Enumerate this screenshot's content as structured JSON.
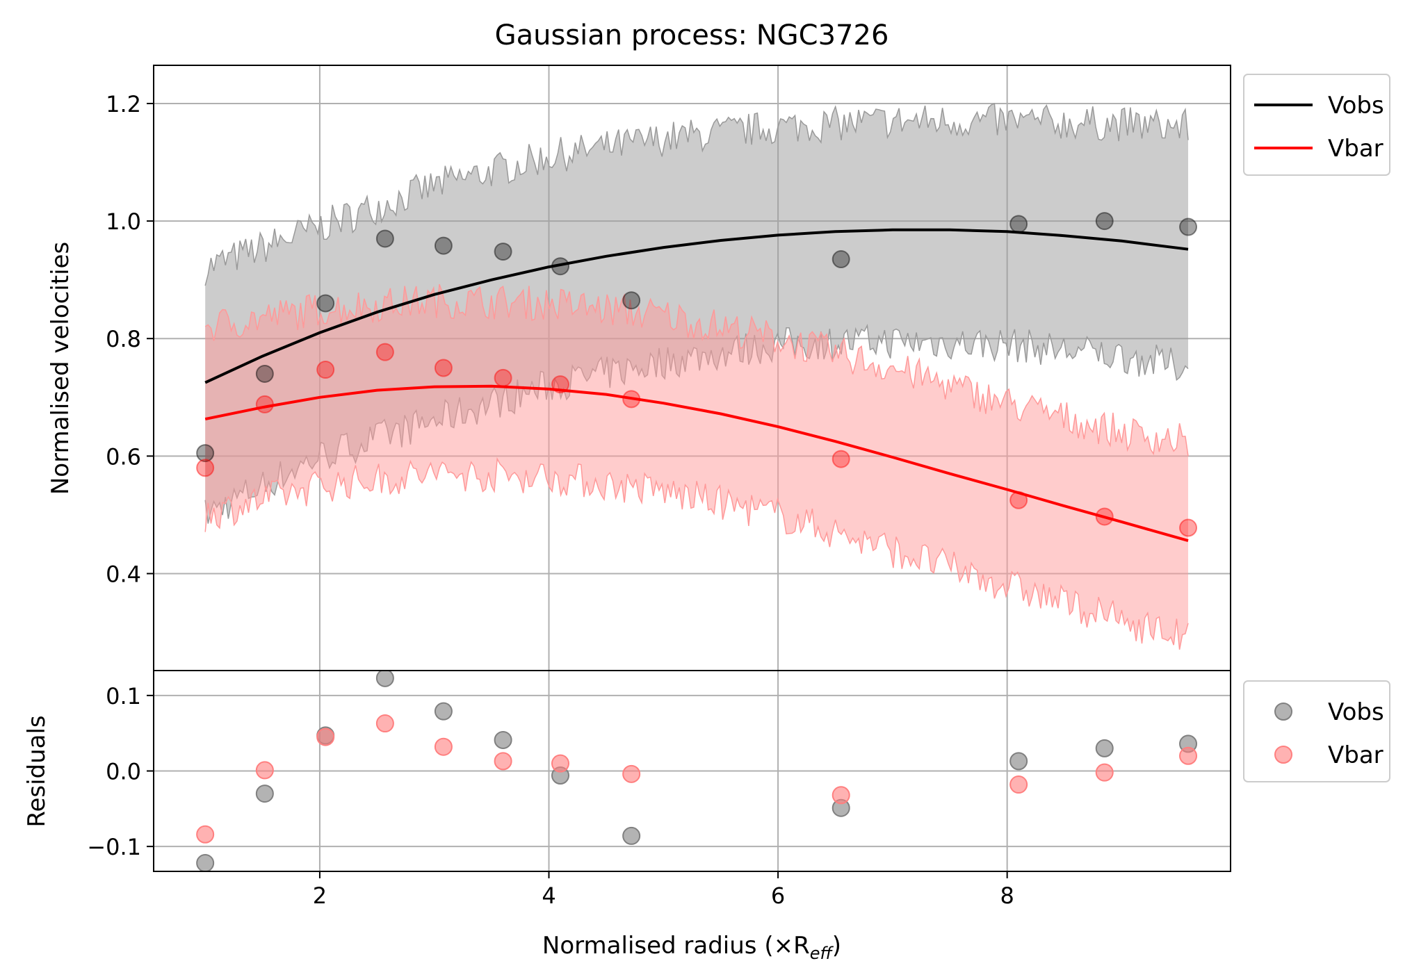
{
  "chart_data": [
    {
      "type": "line",
      "title": "Gaussian process: NGC3726",
      "xlabel": "",
      "ylabel": "Normalised velocities",
      "xlim": [
        0.55,
        9.95
      ],
      "ylim": [
        0.235,
        1.265
      ],
      "x_ticks": [
        2,
        4,
        6,
        8
      ],
      "y_ticks": [
        0.4,
        0.6,
        0.8,
        1.0,
        1.2
      ],
      "y_tick_labels": [
        "0.4",
        "0.6",
        "0.8",
        "1.0",
        "1.2"
      ],
      "grid": true,
      "legend": {
        "placement": "outside-right-top",
        "entries": [
          "Vobs",
          "Vbar"
        ]
      },
      "x": [
        1.0,
        1.52,
        2.05,
        2.57,
        3.08,
        3.6,
        4.1,
        4.72,
        6.55,
        8.1,
        8.85,
        9.58
      ],
      "series": [
        {
          "name": "Vobs",
          "color": "#000000",
          "band_color": "#999999",
          "points": [
            0.605,
            0.74,
            0.86,
            0.97,
            0.958,
            0.948,
            0.923,
            0.865,
            0.935,
            0.995,
            1.0,
            0.99
          ],
          "fit": [
            {
              "x": 1.0,
              "y": 0.725
            },
            {
              "x": 1.5,
              "y": 0.77
            },
            {
              "x": 2.0,
              "y": 0.81
            },
            {
              "x": 2.5,
              "y": 0.845
            },
            {
              "x": 3.0,
              "y": 0.875
            },
            {
              "x": 3.5,
              "y": 0.9
            },
            {
              "x": 4.0,
              "y": 0.922
            },
            {
              "x": 4.5,
              "y": 0.94
            },
            {
              "x": 5.0,
              "y": 0.955
            },
            {
              "x": 5.5,
              "y": 0.967
            },
            {
              "x": 6.0,
              "y": 0.976
            },
            {
              "x": 6.5,
              "y": 0.982
            },
            {
              "x": 7.0,
              "y": 0.985
            },
            {
              "x": 7.5,
              "y": 0.985
            },
            {
              "x": 8.0,
              "y": 0.982
            },
            {
              "x": 8.5,
              "y": 0.975
            },
            {
              "x": 9.0,
              "y": 0.966
            },
            {
              "x": 9.58,
              "y": 0.952
            }
          ],
          "band_upper": [
            {
              "x": 1.0,
              "y": 0.92
            },
            {
              "x": 2.0,
              "y": 0.99
            },
            {
              "x": 3.0,
              "y": 1.06
            },
            {
              "x": 4.0,
              "y": 1.11
            },
            {
              "x": 5.0,
              "y": 1.14
            },
            {
              "x": 6.0,
              "y": 1.16
            },
            {
              "x": 7.0,
              "y": 1.17
            },
            {
              "x": 8.0,
              "y": 1.17
            },
            {
              "x": 9.0,
              "y": 1.165
            },
            {
              "x": 9.58,
              "y": 1.16
            }
          ],
          "band_lower": [
            {
              "x": 1.0,
              "y": 0.5
            },
            {
              "x": 2.0,
              "y": 0.6
            },
            {
              "x": 3.0,
              "y": 0.66
            },
            {
              "x": 4.0,
              "y": 0.72
            },
            {
              "x": 5.0,
              "y": 0.76
            },
            {
              "x": 6.0,
              "y": 0.79
            },
            {
              "x": 7.0,
              "y": 0.795
            },
            {
              "x": 8.0,
              "y": 0.79
            },
            {
              "x": 9.0,
              "y": 0.77
            },
            {
              "x": 9.58,
              "y": 0.75
            }
          ]
        },
        {
          "name": "Vbar",
          "color": "#ff0000",
          "band_color": "#ff9999",
          "points": [
            0.58,
            0.688,
            0.747,
            0.777,
            0.75,
            0.733,
            0.722,
            0.697,
            0.595,
            0.525,
            0.497,
            0.478
          ],
          "fit": [
            {
              "x": 1.0,
              "y": 0.663
            },
            {
              "x": 1.5,
              "y": 0.683
            },
            {
              "x": 2.0,
              "y": 0.7
            },
            {
              "x": 2.5,
              "y": 0.712
            },
            {
              "x": 3.0,
              "y": 0.718
            },
            {
              "x": 3.5,
              "y": 0.719
            },
            {
              "x": 4.0,
              "y": 0.714
            },
            {
              "x": 4.5,
              "y": 0.705
            },
            {
              "x": 5.0,
              "y": 0.69
            },
            {
              "x": 5.5,
              "y": 0.672
            },
            {
              "x": 6.0,
              "y": 0.65
            },
            {
              "x": 6.5,
              "y": 0.625
            },
            {
              "x": 7.0,
              "y": 0.598
            },
            {
              "x": 7.5,
              "y": 0.57
            },
            {
              "x": 8.0,
              "y": 0.543
            },
            {
              "x": 8.5,
              "y": 0.515
            },
            {
              "x": 9.0,
              "y": 0.488
            },
            {
              "x": 9.58,
              "y": 0.456
            }
          ],
          "band_upper": [
            {
              "x": 1.0,
              "y": 0.82
            },
            {
              "x": 2.0,
              "y": 0.85
            },
            {
              "x": 3.0,
              "y": 0.865
            },
            {
              "x": 4.0,
              "y": 0.86
            },
            {
              "x": 5.0,
              "y": 0.84
            },
            {
              "x": 6.0,
              "y": 0.8
            },
            {
              "x": 7.0,
              "y": 0.75
            },
            {
              "x": 8.0,
              "y": 0.69
            },
            {
              "x": 9.0,
              "y": 0.64
            },
            {
              "x": 9.58,
              "y": 0.625
            }
          ],
          "band_lower": [
            {
              "x": 1.0,
              "y": 0.5
            },
            {
              "x": 2.0,
              "y": 0.55
            },
            {
              "x": 3.0,
              "y": 0.57
            },
            {
              "x": 4.0,
              "y": 0.565
            },
            {
              "x": 5.0,
              "y": 0.54
            },
            {
              "x": 6.0,
              "y": 0.5
            },
            {
              "x": 7.0,
              "y": 0.44
            },
            {
              "x": 8.0,
              "y": 0.38
            },
            {
              "x": 9.0,
              "y": 0.32
            },
            {
              "x": 9.58,
              "y": 0.29
            }
          ]
        }
      ]
    },
    {
      "type": "scatter",
      "title": "",
      "xlabel": "Normalised radius (×R",
      "xlabel_subscript": "eff",
      "xlabel_suffix": ")",
      "ylabel": "Residuals",
      "xlim": [
        0.55,
        9.95
      ],
      "ylim": [
        -0.133,
        0.133
      ],
      "x_ticks": [
        2,
        4,
        6,
        8
      ],
      "x_tick_labels": [
        "2",
        "4",
        "6",
        "8"
      ],
      "y_ticks": [
        -0.1,
        0.0,
        0.1
      ],
      "y_tick_labels": [
        "−0.1",
        "0.0",
        "0.1"
      ],
      "grid": true,
      "legend": {
        "placement": "outside-right-top",
        "entries": [
          "Vobs",
          "Vbar"
        ]
      },
      "x": [
        1.0,
        1.52,
        2.05,
        2.57,
        3.08,
        3.6,
        4.1,
        4.72,
        6.55,
        8.1,
        8.85,
        9.58
      ],
      "series": [
        {
          "name": "Vobs",
          "color": "#808080",
          "values": [
            -0.122,
            -0.03,
            0.047,
            0.123,
            0.079,
            0.041,
            -0.006,
            -0.086,
            -0.049,
            0.013,
            0.03,
            0.036
          ]
        },
        {
          "name": "Vbar",
          "color": "#ff7f7f",
          "values": [
            -0.084,
            0.001,
            0.045,
            0.063,
            0.032,
            0.013,
            0.01,
            -0.004,
            -0.032,
            -0.018,
            -0.002,
            0.02
          ]
        }
      ]
    }
  ]
}
